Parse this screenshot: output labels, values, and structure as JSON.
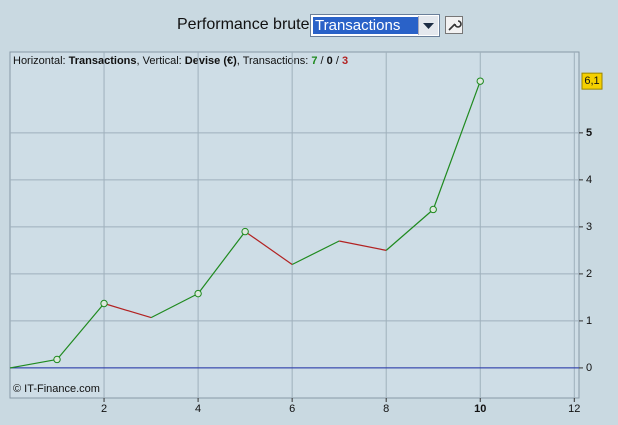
{
  "header": {
    "label": "Performance brute",
    "selected": "Transactions"
  },
  "chart_data": {
    "type": "line",
    "info": {
      "h_label": "Horizontal: ",
      "h_value": "Transactions",
      "v_label": ", Vertical: ",
      "v_value": "Devise (€)",
      "t_label": ", Transactions: ",
      "wins": 7,
      "even": 0,
      "losses": 3,
      "separator": " / "
    },
    "x": [
      0,
      1,
      2,
      3,
      4,
      5,
      6,
      7,
      8,
      9,
      10
    ],
    "values": [
      0,
      0.18,
      1.37,
      1.07,
      1.58,
      2.9,
      2.2,
      2.7,
      2.5,
      3.37,
      6.1
    ],
    "value_labels": [
      null,
      null,
      null,
      null,
      null,
      null,
      null,
      null,
      null,
      null,
      "6,1"
    ],
    "up_color": "#1f8a1f",
    "down_color": "#b22222",
    "zero_color": "#2233aa",
    "xlim": [
      0,
      12.1
    ],
    "ylim": [
      -0.64,
      6.72
    ],
    "xticks": [
      2,
      4,
      6,
      8,
      10,
      12
    ],
    "yticks": [
      0,
      1,
      2,
      3,
      4,
      5
    ],
    "bold_xticks": [
      10
    ],
    "bold_yticks": [
      5
    ],
    "grid": true,
    "copyright": "© IT-Finance.com"
  }
}
